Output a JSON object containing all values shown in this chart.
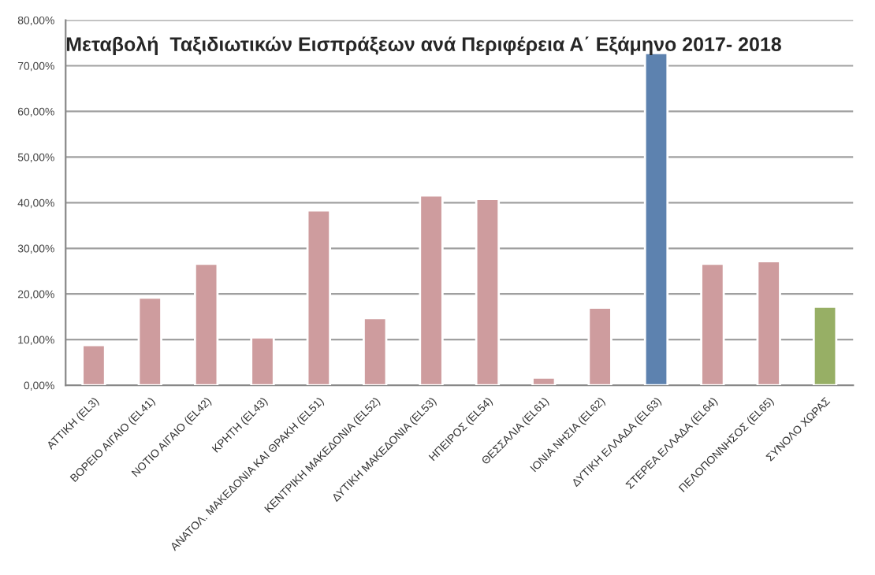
{
  "chart_data": {
    "type": "bar",
    "title": "Μεταβολή  Ταξιδιωτικών Εισπράξεων ανά Περιφέρεια Α΄ Εξάμηνο 2017- 2018",
    "categories": [
      "ΑΤΤΙΚΗ (EL3)",
      "ΒΟΡΕΙΟ ΑΙΓΑΙΟ (EL41)",
      "ΝΟΤΙΟ ΑΙΓΑΙΟ (EL42)",
      "ΚΡΗΤΗ (EL43)",
      "ΑΝΑΤΟΛ. ΜΑΚΕΔΟΝΙΑ ΚΑΙ ΘΡΑΚΗ (EL51)",
      "ΚΕΝΤΡΙΚΗ ΜΑΚΕΔΟΝΙΑ (EL52)",
      "ΔΥΤΙΚΗ ΜΑΚΕΔΟΝΙΑ (EL53)",
      "ΗΠΕΙΡΟΣ (EL54)",
      "ΘΕΣΣΑΛΙΑ (EL61)",
      "ΙΟΝΙΑ ΝΗΣΙΑ (EL62)",
      "ΔΥΤΙΚΗ ΕΛΛΑΔΑ (EL63)",
      "ΣΤΕΡΕΑ ΕΛΛΑΔΑ (EL64)",
      "ΠΕΛΟΠΟΝΝΗΣΟΣ (EL65)",
      "ΣΥΝΟΛΟ ΧΩΡΑΣ"
    ],
    "values": [
      8.8,
      19.2,
      26.6,
      10.5,
      38.3,
      14.7,
      41.6,
      40.8,
      1.7,
      17.0,
      72.8,
      26.6,
      27.2,
      17.2
    ],
    "colors": [
      "#d69496",
      "#d69496",
      "#d69496",
      "#d69496",
      "#d69496",
      "#d69496",
      "#d69496",
      "#d69496",
      "#d69496",
      "#d69496",
      "#4f81bd",
      "#d69496",
      "#d69496",
      "#9bbb59"
    ],
    "ylim": [
      0,
      80
    ],
    "yticks": [
      {
        "value": 0,
        "label": "0,00%"
      },
      {
        "value": 10,
        "label": "10,00%"
      },
      {
        "value": 20,
        "label": "20,00%"
      },
      {
        "value": 30,
        "label": "30,00%"
      },
      {
        "value": 40,
        "label": "40,00%"
      },
      {
        "value": 50,
        "label": "50,00%"
      },
      {
        "value": 60,
        "label": "60,00%"
      },
      {
        "value": 70,
        "label": "70,00%"
      },
      {
        "value": 80,
        "label": "80,00%"
      }
    ],
    "grid": "y",
    "legend": false
  }
}
